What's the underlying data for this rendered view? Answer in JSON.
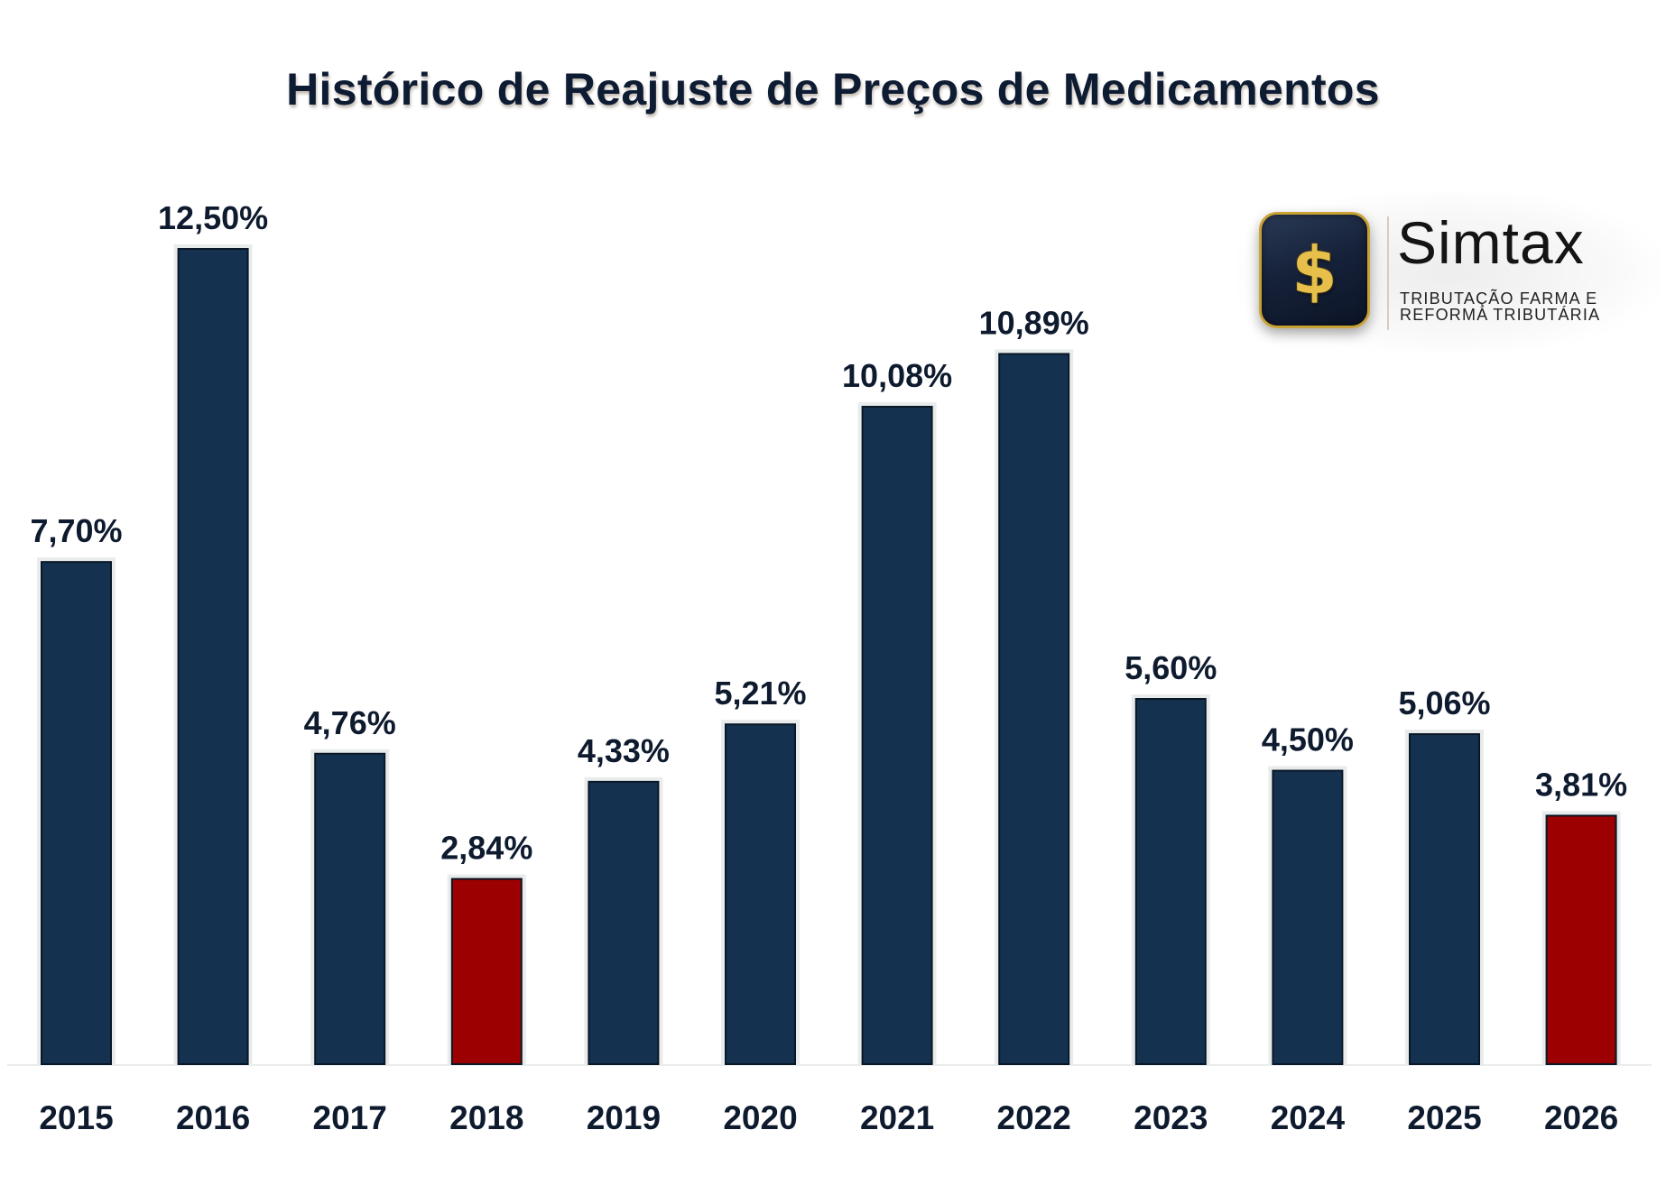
{
  "chart_data": {
    "type": "bar",
    "title": "Histórico de Reajuste de Preços de Medicamentos",
    "xlabel": "",
    "ylabel": "",
    "categories": [
      "2015",
      "2016",
      "2017",
      "2018",
      "2019",
      "2020",
      "2021",
      "2022",
      "2023",
      "2024",
      "2025",
      "2026"
    ],
    "values": [
      7.7,
      12.5,
      4.76,
      2.84,
      4.33,
      5.21,
      10.08,
      10.89,
      5.6,
      4.5,
      5.06,
      3.81
    ],
    "value_labels": [
      "7,70%",
      "12,50%",
      "4,76%",
      "2,84%",
      "4,33%",
      "5,21%",
      "10,08%",
      "10,89%",
      "5,60%",
      "4,50%",
      "5,06%",
      "3,81%"
    ],
    "highlighted": [
      "2018",
      "2026"
    ],
    "ylim": [
      0,
      12.5
    ],
    "y_axis_visible": false,
    "grid": false,
    "legend": "none",
    "colors": {
      "default_bar": "#14324f",
      "highlight_bar": "#9c0000",
      "text": "#0e1a2e"
    }
  },
  "logo": {
    "icon": "dollar-sign-icon",
    "icon_glyph": "$",
    "name": "Simtax",
    "tagline_line1": "TRIBUTAÇÃO FARMA E",
    "tagline_line2": "REFORMA TRIBUTÁRIA",
    "colors": {
      "gold": "#c9a234",
      "navy": "#16223a"
    }
  }
}
